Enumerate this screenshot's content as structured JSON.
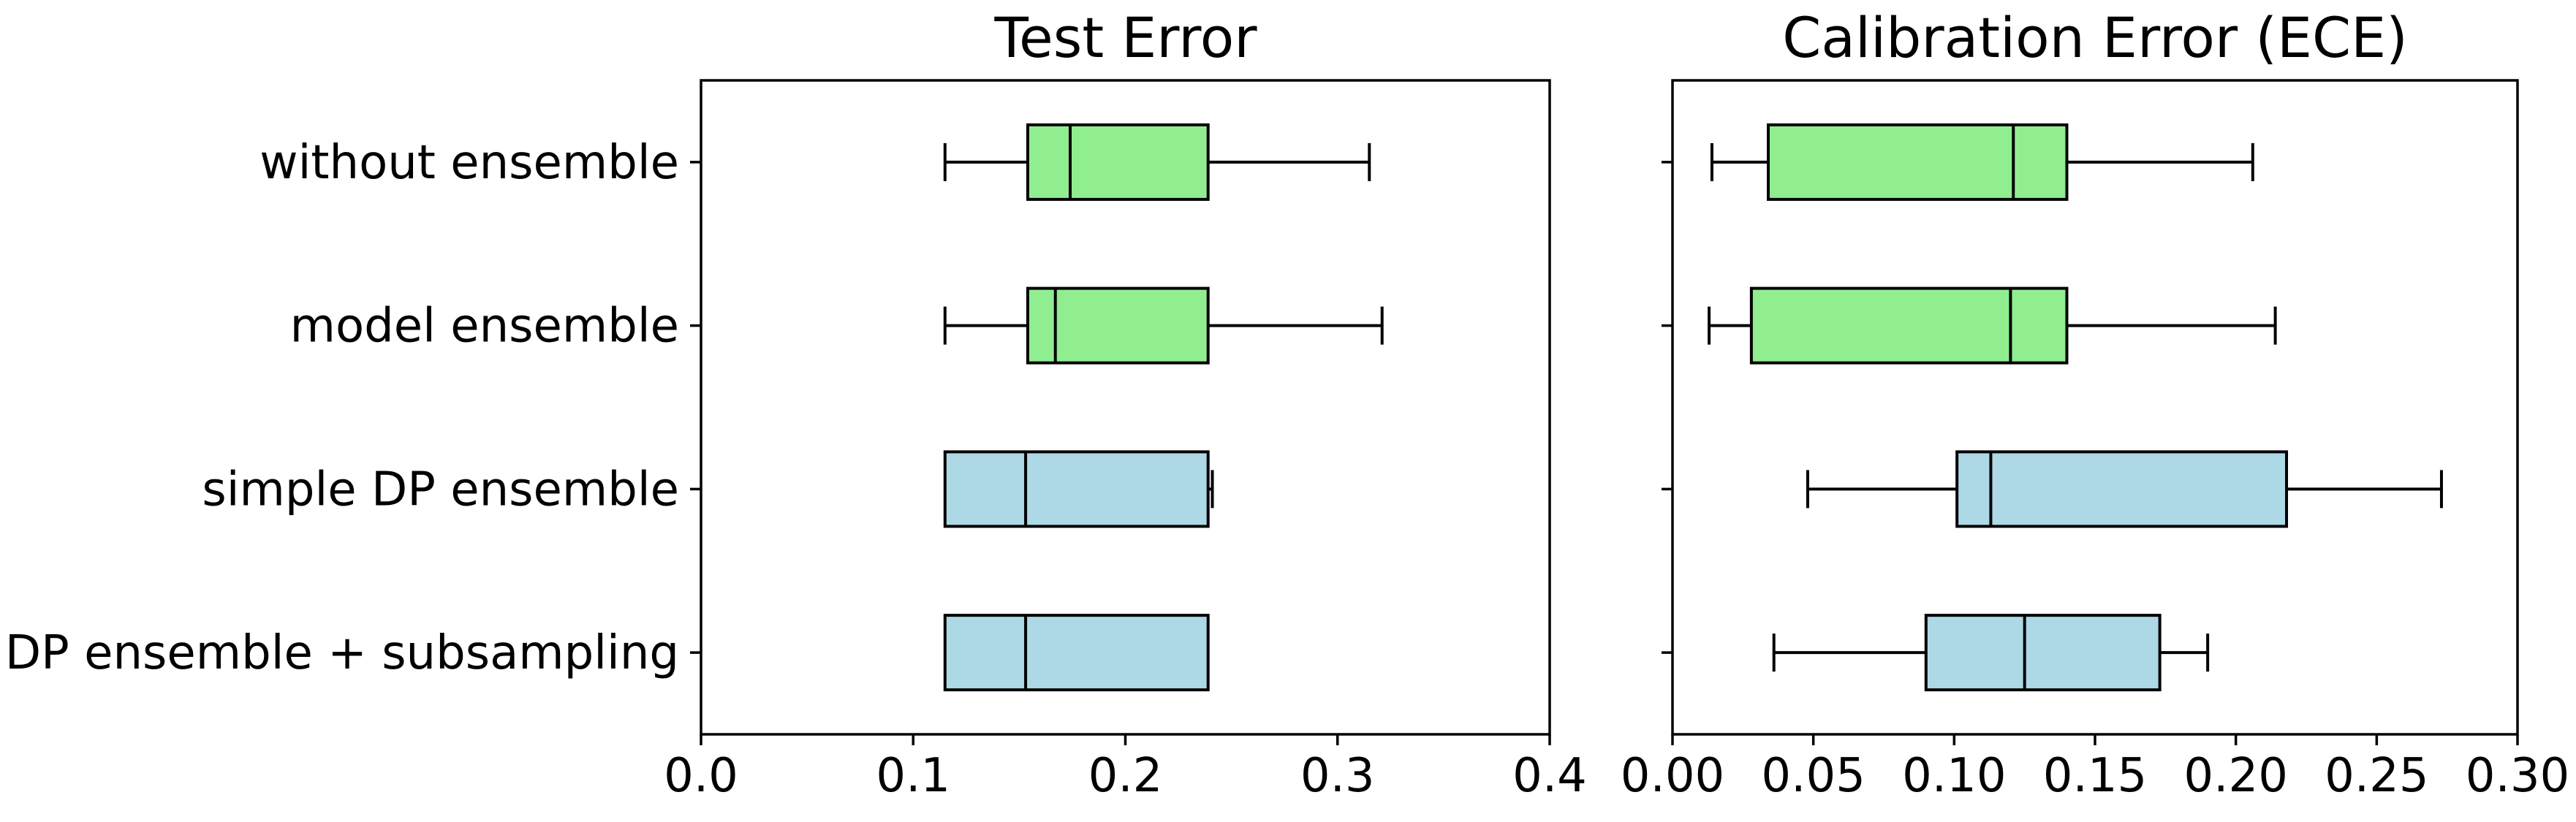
{
  "figure": {
    "background": "#ffffff",
    "text_color": "#000000",
    "edge_color": "#000000"
  },
  "categories": [
    "without ensemble",
    "model ensemble",
    "simple DP ensemble",
    "DP ensemble + subsampling"
  ],
  "palette": {
    "ensemble_green": "#90ee90",
    "dp_blue": "#add8e6",
    "line_black": "#000000"
  },
  "chart_data": [
    {
      "type": "boxplot",
      "orientation": "horizontal",
      "title": "Test Error",
      "xlim": [
        0.0,
        0.4
      ],
      "grid": false,
      "show_category_labels": true,
      "xticks": [
        {
          "value": 0.0,
          "label": "0.0"
        },
        {
          "value": 0.1,
          "label": "0.1"
        },
        {
          "value": 0.2,
          "label": "0.2"
        },
        {
          "value": 0.3,
          "label": "0.3"
        },
        {
          "value": 0.4,
          "label": "0.4"
        }
      ],
      "series": [
        {
          "name": "without ensemble",
          "fill": "#90ee90",
          "whisker_low": 0.115,
          "q1": 0.154,
          "median": 0.174,
          "q3": 0.239,
          "whisker_high": 0.315
        },
        {
          "name": "model ensemble",
          "fill": "#90ee90",
          "whisker_low": 0.115,
          "q1": 0.154,
          "median": 0.167,
          "q3": 0.239,
          "whisker_high": 0.321
        },
        {
          "name": "simple DP ensemble",
          "fill": "#add8e6",
          "whisker_low": 0.115,
          "q1": 0.115,
          "median": 0.153,
          "q3": 0.239,
          "whisker_high": 0.241
        },
        {
          "name": "DP ensemble + subsampling",
          "fill": "#add8e6",
          "whisker_low": 0.115,
          "q1": 0.115,
          "median": 0.153,
          "q3": 0.239,
          "whisker_high": 0.239
        }
      ]
    },
    {
      "type": "boxplot",
      "orientation": "horizontal",
      "title": "Calibration Error (ECE)",
      "xlim": [
        0.0,
        0.3
      ],
      "grid": false,
      "show_category_labels": false,
      "xticks": [
        {
          "value": 0.0,
          "label": "0.00"
        },
        {
          "value": 0.05,
          "label": "0.05"
        },
        {
          "value": 0.1,
          "label": "0.10"
        },
        {
          "value": 0.15,
          "label": "0.15"
        },
        {
          "value": 0.2,
          "label": "0.20"
        },
        {
          "value": 0.25,
          "label": "0.25"
        },
        {
          "value": 0.3,
          "label": "0.30"
        }
      ],
      "series": [
        {
          "name": "without ensemble",
          "fill": "#90ee90",
          "whisker_low": 0.014,
          "q1": 0.034,
          "median": 0.121,
          "q3": 0.14,
          "whisker_high": 0.206
        },
        {
          "name": "model ensemble",
          "fill": "#90ee90",
          "whisker_low": 0.013,
          "q1": 0.028,
          "median": 0.12,
          "q3": 0.14,
          "whisker_high": 0.214
        },
        {
          "name": "simple DP ensemble",
          "fill": "#add8e6",
          "whisker_low": 0.048,
          "q1": 0.101,
          "median": 0.113,
          "q3": 0.218,
          "whisker_high": 0.273
        },
        {
          "name": "DP ensemble + subsampling",
          "fill": "#add8e6",
          "whisker_low": 0.036,
          "q1": 0.09,
          "median": 0.125,
          "q3": 0.173,
          "whisker_high": 0.19
        }
      ]
    }
  ]
}
